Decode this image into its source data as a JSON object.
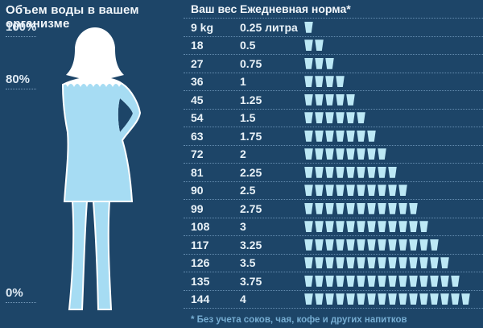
{
  "left_panel": {
    "title": "Объем воды в вашем организме",
    "marker_100": "100%",
    "marker_80": "80%",
    "marker_0": "0%"
  },
  "table": {
    "header": {
      "weight": "Ваш вес",
      "norm": "Ежедневная норма*"
    },
    "rows": [
      {
        "weight": "9 kg",
        "norm": "0.25 литра",
        "cups": 1
      },
      {
        "weight": "18",
        "norm": "0.5",
        "cups": 2
      },
      {
        "weight": "27",
        "norm": "0.75",
        "cups": 3
      },
      {
        "weight": "36",
        "norm": "1",
        "cups": 4
      },
      {
        "weight": "45",
        "norm": "1.25",
        "cups": 5
      },
      {
        "weight": "54",
        "norm": "1.5",
        "cups": 6
      },
      {
        "weight": "63",
        "norm": "1.75",
        "cups": 7
      },
      {
        "weight": "72",
        "norm": "2",
        "cups": 8
      },
      {
        "weight": "81",
        "norm": "2.25",
        "cups": 9
      },
      {
        "weight": "90",
        "norm": "2.5",
        "cups": 10
      },
      {
        "weight": "99",
        "norm": "2.75",
        "cups": 11
      },
      {
        "weight": "108",
        "norm": "3",
        "cups": 12
      },
      {
        "weight": "117",
        "norm": "3.25",
        "cups": 13
      },
      {
        "weight": "126",
        "norm": "3.5",
        "cups": 14
      },
      {
        "weight": "135",
        "norm": "3.75",
        "cups": 15
      },
      {
        "weight": "144",
        "norm": "4",
        "cups": 16
      }
    ],
    "footnote": "* Без учета соков, чая, кофе и других напитков"
  },
  "colors": {
    "background": "#1d4568",
    "text": "#eef5fa",
    "cup": "#bce8f5",
    "body_water": "#a6dcf3",
    "silhouette": "#ffffff",
    "footnote": "#76add2",
    "dotted_line": "rgba(160,200,235,0.55)"
  },
  "chart_data": {
    "type": "table",
    "title": "Ежедневная норма*",
    "subtitle": "Объем воды в вашем организме",
    "categories": [
      "9 kg",
      "18",
      "27",
      "36",
      "45",
      "54",
      "63",
      "72",
      "81",
      "90",
      "99",
      "108",
      "117",
      "126",
      "135",
      "144"
    ],
    "values": [
      0.25,
      0.5,
      0.75,
      1,
      1.25,
      1.5,
      1.75,
      2,
      2.25,
      2.5,
      2.75,
      3,
      3.25,
      3.5,
      3.75,
      4
    ],
    "cup_counts": [
      1,
      2,
      3,
      4,
      5,
      6,
      7,
      8,
      9,
      10,
      11,
      12,
      13,
      14,
      15,
      16
    ],
    "unit": "литра",
    "xlabel": "Ваш вес",
    "ylabel": "Ежедневная норма*",
    "body_scale_percent": [
      100,
      80,
      0
    ],
    "body_water_level_percent": 80,
    "footnote": "* Без учета соков, чая, кофе и других напитков"
  }
}
